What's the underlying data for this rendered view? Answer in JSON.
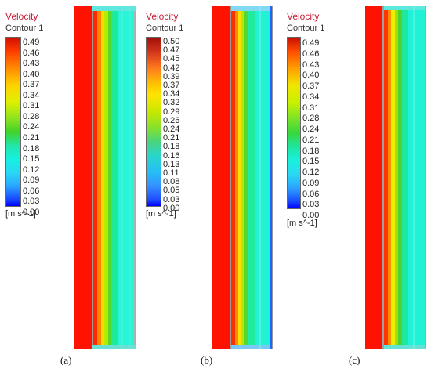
{
  "legend_a": {
    "title": "Velocity",
    "subtitle": "Contour 1",
    "ticks": [
      "0.49",
      "0.46",
      "0.43",
      "0.40",
      "0.37",
      "0.34",
      "0.31",
      "0.28",
      "0.24",
      "0.21",
      "0.18",
      "0.15",
      "0.12",
      "0.09",
      "0.06",
      "0.03",
      "0.00"
    ],
    "unit": "[m s^-1]"
  },
  "legend_b": {
    "title": "Velocity",
    "subtitle": "Contour 1",
    "ticks": [
      "0.50",
      "0.47",
      "0.45",
      "0.42",
      "0.39",
      "0.37",
      "0.34",
      "0.32",
      "0.29",
      "0.26",
      "0.24",
      "0.21",
      "0.18",
      "0.16",
      "0.13",
      "0.11",
      "0.08",
      "0.05",
      "0.03",
      "0.00"
    ],
    "unit": "[m s^-1]"
  },
  "legend_c": {
    "title": "Velocity",
    "subtitle": "Contour 1",
    "ticks": [
      "0.49",
      "0.46",
      "0.43",
      "0.40",
      "0.37",
      "0.34",
      "0.31",
      "0.28",
      "0.24",
      "0.21",
      "0.18",
      "0.15",
      "0.12",
      "0.09",
      "0.06",
      "0.03",
      "0.00"
    ],
    "unit": "[m s^-1]"
  },
  "panel_labels": {
    "a": "(a)",
    "b": "(b)",
    "c": "(c)"
  },
  "colors": {
    "red": "#ff1200",
    "orange": "#ff7a00",
    "yellow": "#e8e800",
    "green": "#36d11a",
    "cyan": "#00f0c8",
    "light_cyan": "#25f4d2",
    "blue": "#0000ff"
  }
}
